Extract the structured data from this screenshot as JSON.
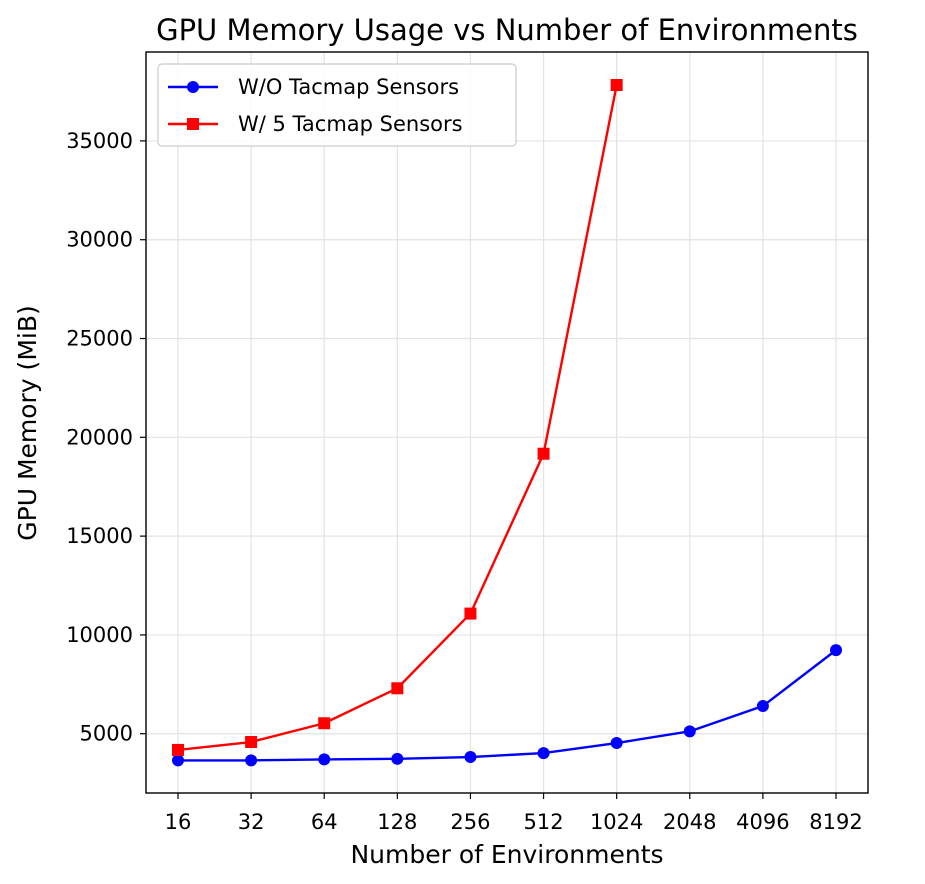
{
  "chart_data": {
    "type": "line",
    "title": "GPU Memory Usage vs Number of Environments",
    "xlabel": "Number of Environments",
    "ylabel": "GPU Memory (MiB)",
    "categories": [
      "16",
      "32",
      "64",
      "128",
      "256",
      "512",
      "1024",
      "2048",
      "4096",
      "8192"
    ],
    "yticks": [
      "5000",
      "10000",
      "15000",
      "20000",
      "25000",
      "30000",
      "35000"
    ],
    "ylim": [
      2000,
      39500
    ],
    "grid": true,
    "legend_position": "top-left",
    "series": [
      {
        "name": "W/O Tacmap Sensors",
        "color": "#0000ff",
        "marker": "circle",
        "values": [
          3650,
          3650,
          3700,
          3730,
          3820,
          4020,
          4530,
          5120,
          6400,
          9230
        ]
      },
      {
        "name": "W/ 5 Tacmap Sensors",
        "color": "#ff0000",
        "marker": "square",
        "values": [
          4180,
          4580,
          5530,
          7300,
          11080,
          19170,
          37830,
          null,
          null,
          null
        ]
      }
    ]
  }
}
